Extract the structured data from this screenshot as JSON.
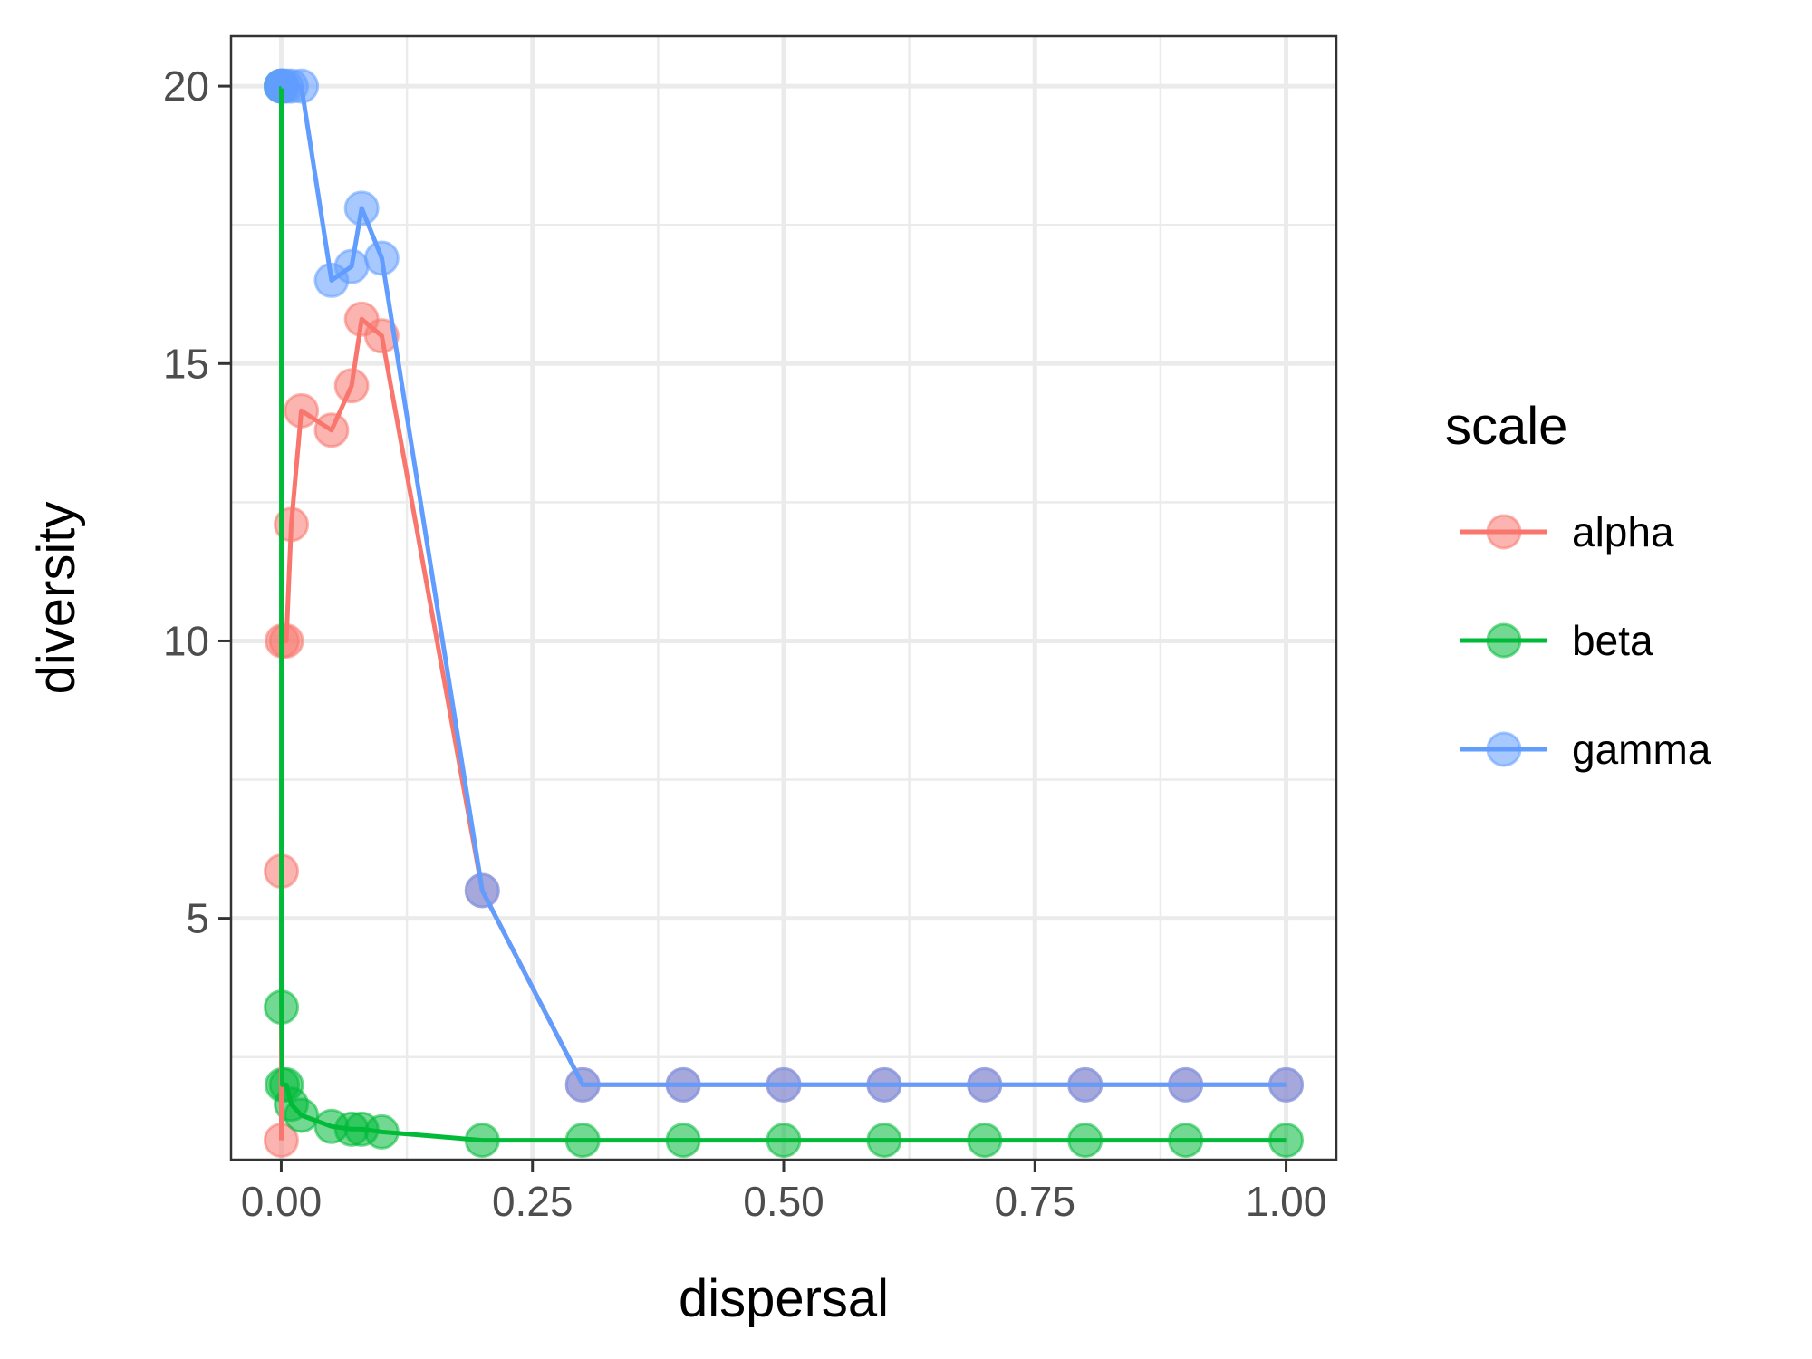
{
  "chart_data": {
    "type": "line",
    "xlabel": "dispersal",
    "ylabel": "diversity",
    "xlim": [
      -0.05,
      1.05
    ],
    "ylim": [
      0.65,
      20.9
    ],
    "x_ticks": [
      0,
      0.25,
      0.5,
      0.75,
      1
    ],
    "x_tick_labels": [
      "0.00",
      "0.25",
      "0.50",
      "0.75",
      "1.00"
    ],
    "y_ticks": [
      5,
      10,
      15,
      20
    ],
    "y_tick_labels": [
      "5",
      "10",
      "15",
      "20"
    ],
    "grid": true,
    "legend": {
      "title": "scale",
      "position": "right"
    },
    "series": [
      {
        "name": "alpha",
        "color": "#F8766D",
        "x": [
          0,
          0.0001,
          0.001,
          0.005,
          0.01,
          0.02,
          0.05,
          0.07,
          0.08,
          0.1,
          0.2,
          0.3,
          0.4,
          0.5,
          0.6,
          0.7,
          0.8,
          0.9,
          1.0
        ],
        "y": [
          1.0,
          5.85,
          10.0,
          10.0,
          12.1,
          14.15,
          13.8,
          14.6,
          15.8,
          15.5,
          5.5,
          2.0,
          2.0,
          2.0,
          2.0,
          2.0,
          2.0,
          2.0,
          2.0
        ]
      },
      {
        "name": "beta",
        "color": "#00BA38",
        "x": [
          0,
          0.0001,
          0.001,
          0.005,
          0.01,
          0.02,
          0.05,
          0.07,
          0.08,
          0.1,
          0.2,
          0.3,
          0.4,
          0.5,
          0.6,
          0.7,
          0.8,
          0.9,
          1.0
        ],
        "y": [
          20.0,
          3.4,
          2.0,
          2.0,
          1.65,
          1.45,
          1.25,
          1.2,
          1.2,
          1.15,
          1.0,
          1.0,
          1.0,
          1.0,
          1.0,
          1.0,
          1.0,
          1.0,
          1.0
        ]
      },
      {
        "name": "gamma",
        "color": "#619CFF",
        "x": [
          0,
          0.0001,
          0.001,
          0.005,
          0.01,
          0.02,
          0.05,
          0.07,
          0.08,
          0.1,
          0.2,
          0.3,
          0.4,
          0.5,
          0.6,
          0.7,
          0.8,
          0.9,
          1.0
        ],
        "y": [
          20.0,
          20.0,
          20.0,
          20.0,
          20.0,
          20.0,
          16.5,
          16.75,
          17.8,
          16.9,
          5.5,
          2.0,
          2.0,
          2.0,
          2.0,
          2.0,
          2.0,
          2.0,
          2.0
        ]
      }
    ]
  }
}
